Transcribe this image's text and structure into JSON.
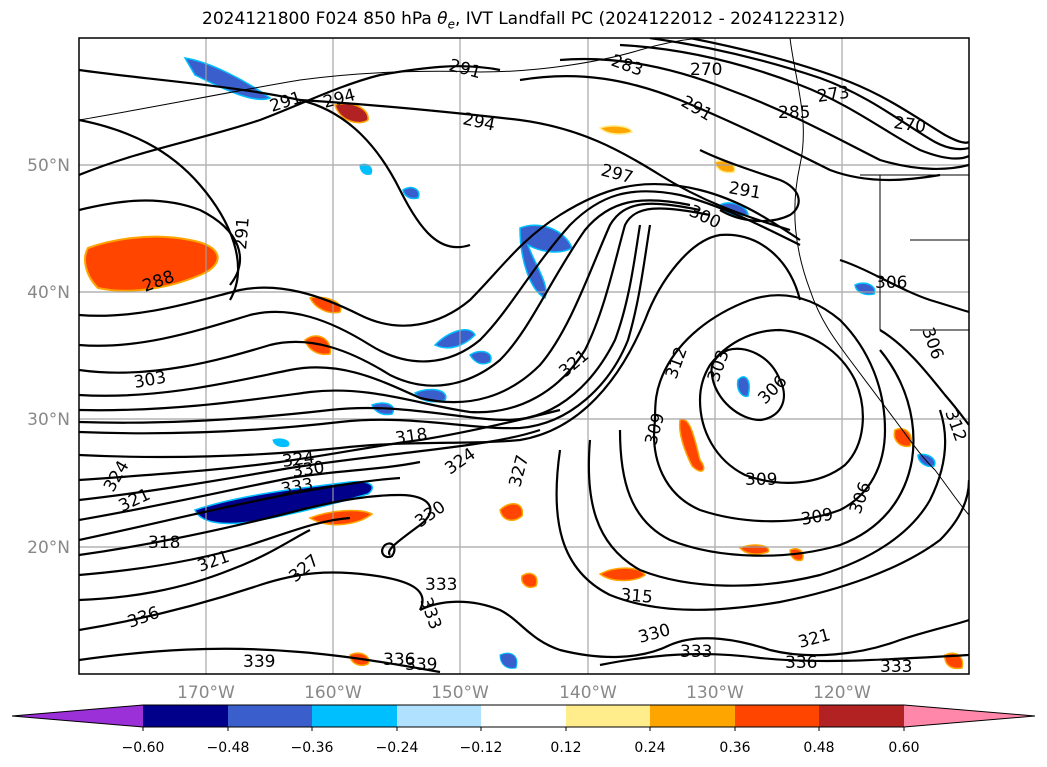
{
  "title": {
    "prefix": "2024121800 F024 850 hPa ",
    "theta_symbol": "θ",
    "theta_sub": "e",
    "suffix": ", IVT Landfall PC (2024122012 - 2024122312)"
  },
  "map": {
    "lat_labels": [
      "50°N",
      "40°N",
      "30°N",
      "20°N"
    ],
    "lon_labels": [
      "170°W",
      "160°W",
      "150°W",
      "140°W",
      "130°W",
      "120°W"
    ],
    "gridline_color": "#a0a0a0"
  },
  "contour_labels": [
    "291",
    "283",
    "270",
    "294",
    "291",
    "285",
    "273",
    "270",
    "291",
    "294",
    "297",
    "291",
    "300",
    "291",
    "288",
    "306",
    "303",
    "321",
    "312",
    "303",
    "306",
    "318",
    "309",
    "309",
    "324",
    "330",
    "333",
    "324",
    "321",
    "324",
    "327",
    "309",
    "306",
    "318",
    "330",
    "321",
    "327",
    "315",
    "333",
    "333",
    "336",
    "330",
    "333",
    "339",
    "336",
    "339",
    "336",
    "321",
    "333",
    "312",
    "306"
  ],
  "colorbar": {
    "ticks": [
      "−0.60",
      "−0.48",
      "−0.36",
      "−0.24",
      "−0.12",
      "0.12",
      "0.24",
      "0.36",
      "0.48",
      "0.60"
    ],
    "colors": [
      "#9b30d9",
      "#00008b",
      "#3a5fcd",
      "#00bfff",
      "#b0e2ff",
      "#ffffff",
      "#ffec8b",
      "#ffa500",
      "#ff4500",
      "#b22222",
      "#ff88aa"
    ]
  }
}
